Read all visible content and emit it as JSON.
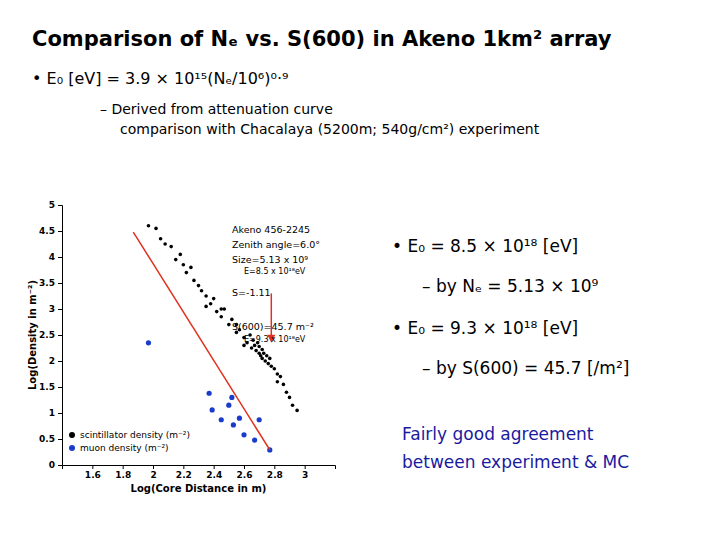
{
  "slide": {
    "title": "Comparison of Nₑ vs. S(600) in Akeno 1km² array",
    "formula": "• E₀ [eV] = 3.9 × 10¹⁵(Nₑ/10⁶)⁰·⁹",
    "formula_note": [
      "– Derived from attenuation curve",
      "comparison with Chacalaya (5200m; 540g/cm²) experiment"
    ],
    "results": [
      "• E₀ = 8.5 × 10¹⁸ [eV]",
      "– by Nₑ = 5.13 × 10⁹",
      "• E₀ = 9.3 × 10¹⁸ [eV]",
      "– by S(600) = 45.7 [/m²]"
    ],
    "conclusion": [
      "Fairly good agreement",
      "between experiment & MC"
    ]
  },
  "chart_data": {
    "type": "scatter",
    "x_label": "Log(Core Distance in m)",
    "y_label": "Log(Density in m⁻²)",
    "xlim": [
      1.4,
      3.2
    ],
    "ylim": [
      0,
      5
    ],
    "xticks": [
      1.6,
      1.8,
      2,
      2.2,
      2.4,
      2.6,
      2.8,
      3
    ],
    "yticks": [
      0,
      0.5,
      1,
      1.5,
      2,
      2.5,
      3,
      3.5,
      4,
      4.5,
      5
    ],
    "legend": "lower left",
    "annotations": [
      "Akeno 456-2245",
      "Zenith angle=6.0°",
      "Size=5.13 x 10⁹",
      "E=8.5 x 10¹⁸eV",
      "S=-1.11",
      "S(600)=45.7 m⁻²",
      "E=9.3 x 10¹⁸eV"
    ],
    "arrow": {
      "x": 2.78,
      "y": [
        3.3,
        2.35
      ]
    },
    "series": [
      {
        "name": "scintillator density (m⁻²)",
        "color": "#000000",
        "marker": "circle",
        "x": [
          1.97,
          2.02,
          2.05,
          2.08,
          2.12,
          2.15,
          2.18,
          2.2,
          2.22,
          2.25,
          2.27,
          2.3,
          2.32,
          2.35,
          2.38,
          2.4,
          2.42,
          2.45,
          2.47,
          2.5,
          2.52,
          2.55,
          2.57,
          2.6,
          2.62,
          2.64,
          2.65,
          2.66,
          2.67,
          2.68,
          2.69,
          2.7,
          2.7,
          2.71,
          2.72,
          2.72,
          2.73,
          2.74,
          2.75,
          2.76,
          2.77,
          2.78,
          2.8,
          2.82,
          2.84,
          2.86,
          2.88,
          2.9,
          2.92,
          2.95,
          2.35,
          2.55,
          2.6,
          2.45,
          2.82
        ],
        "values": [
          4.6,
          4.55,
          4.35,
          4.25,
          4.2,
          3.95,
          4.05,
          3.85,
          3.7,
          3.8,
          3.55,
          3.45,
          3.35,
          3.25,
          3.1,
          3.2,
          2.95,
          2.85,
          3.0,
          2.7,
          2.8,
          2.55,
          2.6,
          2.45,
          2.35,
          2.5,
          2.25,
          2.4,
          2.3,
          2.2,
          2.35,
          2.15,
          2.28,
          2.1,
          2.22,
          2.05,
          2.15,
          2.0,
          2.1,
          1.95,
          2.05,
          1.9,
          1.85,
          1.75,
          1.7,
          1.55,
          1.4,
          1.3,
          1.15,
          1.05,
          3.05,
          2.7,
          2.3,
          3.0,
          1.6
        ]
      },
      {
        "name": "muon density (m⁻²)",
        "color": "#1a3ccc",
        "marker": "circle",
        "x": [
          1.97,
          2.37,
          2.39,
          2.45,
          2.5,
          2.53,
          2.6,
          2.67,
          2.77,
          2.7,
          2.57,
          2.52
        ],
        "values": [
          2.35,
          1.38,
          1.06,
          0.87,
          1.15,
          0.77,
          0.58,
          0.48,
          0.29,
          0.87,
          0.9,
          1.3
        ]
      },
      {
        "type": "line",
        "color": "#e0301e",
        "line_style": "solid",
        "x": [
          1.87,
          2.77
        ],
        "values": [
          4.48,
          0.29
        ]
      }
    ]
  }
}
